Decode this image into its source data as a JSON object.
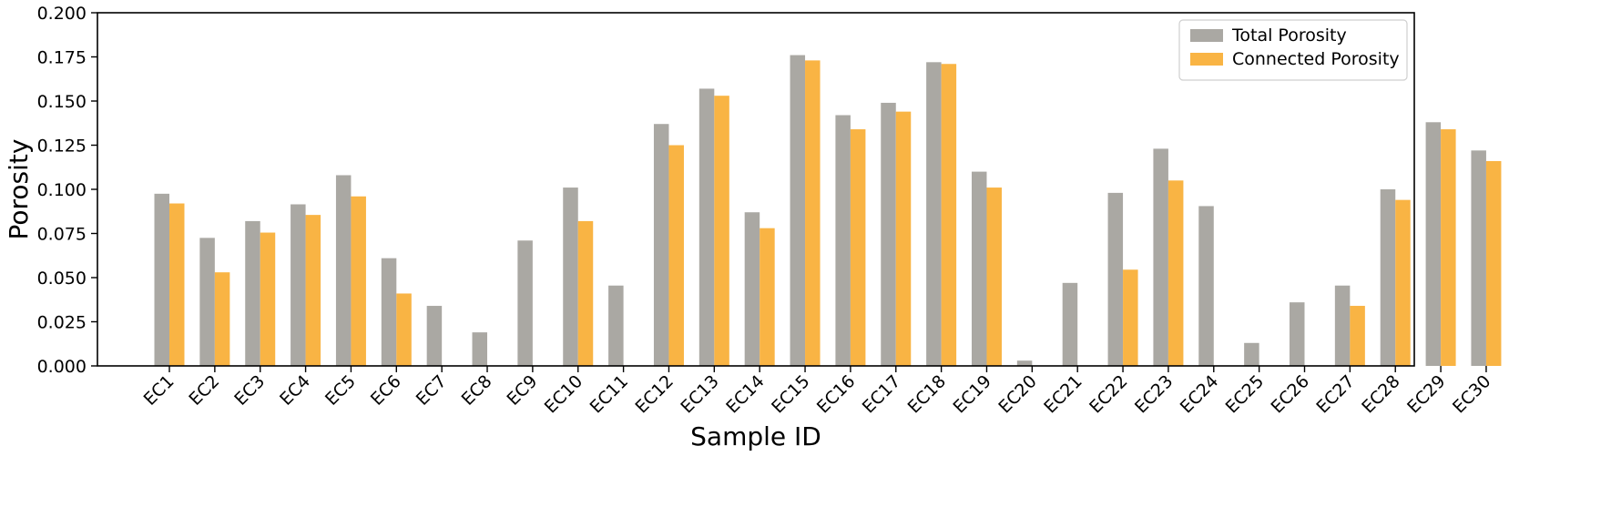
{
  "chart_data": {
    "type": "bar",
    "xlabel": "Sample ID",
    "ylabel": "Porosity",
    "ylim": [
      0,
      0.2
    ],
    "yticks": [
      "0.000",
      "0.025",
      "0.050",
      "0.075",
      "0.100",
      "0.125",
      "0.150",
      "0.175",
      "0.200"
    ],
    "grid": false,
    "legend_position": "top-right",
    "categories": [
      "EC1",
      "EC2",
      "EC3",
      "EC4",
      "EC5",
      "EC6",
      "EC7",
      "EC8",
      "EC9",
      "EC10",
      "EC11",
      "EC12",
      "EC13",
      "EC14",
      "EC15",
      "EC16",
      "EC17",
      "EC18",
      "EC19",
      "EC20",
      "EC21",
      "EC22",
      "EC23",
      "EC24",
      "EC25",
      "EC26",
      "EC27",
      "EC28",
      "EC29",
      "EC30"
    ],
    "series": [
      {
        "name": "Total Porosity",
        "color": "#aaa8a3",
        "values": [
          0.0975,
          0.0725,
          0.082,
          0.0915,
          0.108,
          0.061,
          0.034,
          0.019,
          0.071,
          0.101,
          0.0455,
          0.137,
          0.157,
          0.087,
          0.176,
          0.142,
          0.149,
          0.172,
          0.11,
          0.003,
          0.047,
          0.098,
          0.123,
          0.0905,
          0.013,
          0.036,
          0.0455,
          0.1,
          0.138,
          0.122
        ]
      },
      {
        "name": "Connected Porosity",
        "color": "#f9b444",
        "values": [
          0.092,
          0.053,
          0.0755,
          0.0855,
          0.096,
          0.041,
          0,
          0,
          0,
          0.082,
          0,
          0.125,
          0.153,
          0.078,
          0.173,
          0.134,
          0.144,
          0.171,
          0.101,
          0,
          0,
          0.0545,
          0.105,
          0,
          0,
          0,
          0.034,
          0.094,
          0.134,
          0.116
        ]
      }
    ]
  }
}
